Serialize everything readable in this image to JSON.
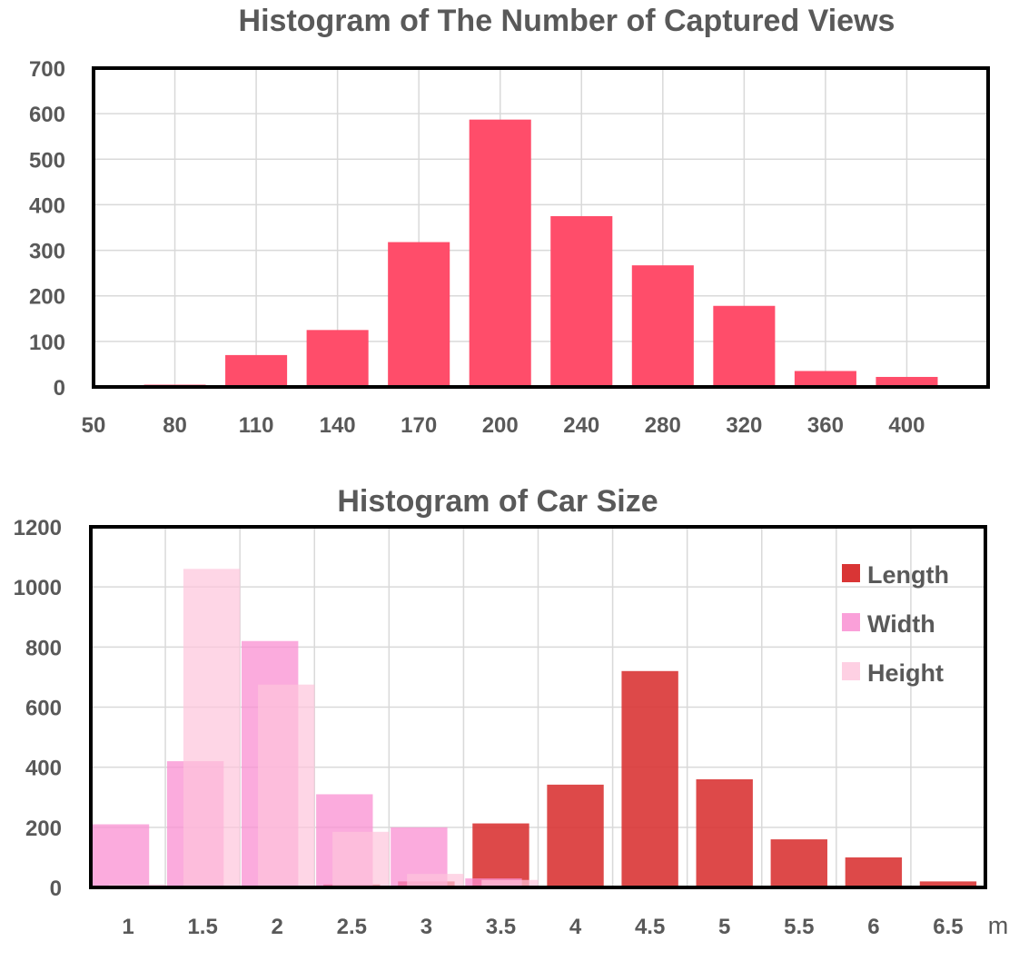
{
  "chart_data": [
    {
      "type": "bar",
      "title": "Histogram of The Number of Captured Views",
      "xlabel": "",
      "ylabel": "",
      "ylim": [
        0,
        700
      ],
      "yticks": [
        "0",
        "100",
        "200",
        "300",
        "400",
        "500",
        "600",
        "700"
      ],
      "xticks": [
        "50",
        "80",
        "110",
        "140",
        "170",
        "200",
        "240",
        "280",
        "320",
        "360",
        "400"
      ],
      "grid": true,
      "color": "#FF4D6A",
      "values": [
        3,
        5,
        70,
        125,
        318,
        587,
        375,
        267,
        178,
        35,
        22
      ]
    },
    {
      "type": "bar",
      "title": "Histogram of Car Size",
      "xlabel": "m",
      "ylabel": "",
      "ylim": [
        0,
        1200
      ],
      "yticks": [
        "0",
        "200",
        "400",
        "600",
        "800",
        "1000",
        "1200"
      ],
      "categories": [
        "1",
        "1.5",
        "2",
        "2.5",
        "3",
        "3.5",
        "4",
        "4.5",
        "5",
        "5.5",
        "6",
        "6.5"
      ],
      "grid": true,
      "legend_position": "top-right",
      "series": [
        {
          "name": "Length",
          "color": "#D93535",
          "opacity": 0.9,
          "values": [
            0,
            0,
            5,
            10,
            20,
            213,
            342,
            720,
            360,
            160,
            100,
            20
          ]
        },
        {
          "name": "Width",
          "color": "#F98FD2",
          "opacity": 0.75,
          "values": [
            210,
            420,
            820,
            310,
            200,
            30,
            0,
            0,
            0,
            0,
            0,
            0
          ]
        },
        {
          "name": "Height",
          "color": "#FEC4DC",
          "opacity": 0.7,
          "values": [
            10,
            1060,
            675,
            185,
            45,
            25,
            0,
            0,
            0,
            0,
            0,
            0
          ]
        }
      ]
    }
  ]
}
